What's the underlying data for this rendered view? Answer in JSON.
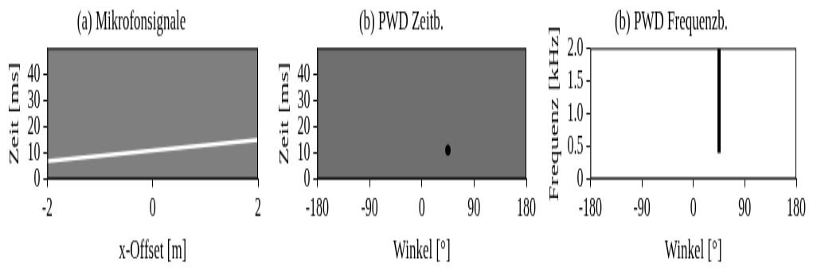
{
  "chart_data": [
    {
      "type": "line",
      "title": "(a) Mikrofonsignale",
      "x_label": "x-Offset [m]",
      "y_label": "Zeit [ms]",
      "xlim": [
        -2,
        2
      ],
      "xticks": [
        -2,
        0,
        2
      ],
      "ylim": [
        0,
        50
      ],
      "yticks": [
        0,
        10,
        20,
        30,
        40
      ],
      "grid": false,
      "x": [
        -2,
        2
      ],
      "series": [
        {
          "values": [
            6.8,
            15
          ],
          "color": "#ffffff"
        }
      ]
    },
    {
      "type": "scatter",
      "title": "(b) PWD Zeitb.",
      "x_label": "Winkel [°]",
      "y_label": "Zeit [ms]",
      "xlim": [
        -180,
        180
      ],
      "xticks": [
        -180,
        -90,
        0,
        90,
        180
      ],
      "ylim": [
        0,
        50
      ],
      "yticks": [
        0,
        10,
        20,
        30,
        40
      ],
      "grid": false,
      "x": [
        45
      ],
      "series": [
        {
          "values": [
            11
          ],
          "color": "#000000"
        }
      ]
    },
    {
      "type": "line",
      "title": "(b) PWD Frequenzb.",
      "x_label": "Winkel [°]",
      "y_label": "Frequenz [kHz]",
      "xlim": [
        -180,
        180
      ],
      "xticks": [
        -180,
        -90,
        0,
        90,
        180
      ],
      "ylim": [
        0,
        2
      ],
      "yticks": [
        0,
        0.5,
        1,
        1.5,
        2
      ],
      "grid": false,
      "x": [
        45,
        45
      ],
      "series": [
        {
          "values": [
            0.4,
            2
          ],
          "color": "#000000"
        }
      ]
    }
  ]
}
